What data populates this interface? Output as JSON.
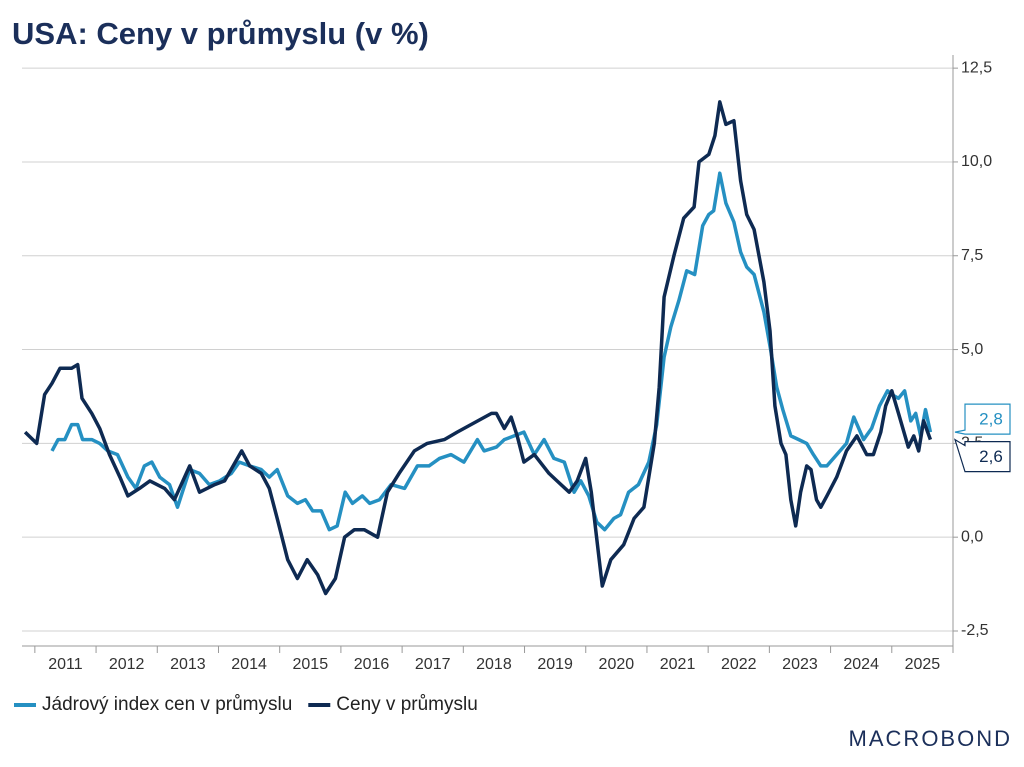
{
  "chart_data": {
    "type": "line",
    "title": "USA: Ceny v průmyslu (v %)",
    "logo": "MACROBOND",
    "xlim": [
      2010.79,
      2026.0
    ],
    "xticks": [
      {
        "value": 2011.5,
        "label": "2011"
      },
      {
        "value": 2012.5,
        "label": "2012"
      },
      {
        "value": 2013.5,
        "label": "2013"
      },
      {
        "value": 2014.5,
        "label": "2014"
      },
      {
        "value": 2015.5,
        "label": "2015"
      },
      {
        "value": 2016.5,
        "label": "2016"
      },
      {
        "value": 2017.5,
        "label": "2017"
      },
      {
        "value": 2018.5,
        "label": "2018"
      },
      {
        "value": 2019.5,
        "label": "2019"
      },
      {
        "value": 2020.5,
        "label": "2020"
      },
      {
        "value": 2021.5,
        "label": "2021"
      },
      {
        "value": 2022.5,
        "label": "2022"
      },
      {
        "value": 2023.5,
        "label": "2023"
      },
      {
        "value": 2024.5,
        "label": "2024"
      },
      {
        "value": 2025.5,
        "label": "2025"
      }
    ],
    "ylim": [
      -2.9,
      12.85
    ],
    "yticks": [
      {
        "value": -2.5,
        "label": "-2,5"
      },
      {
        "value": 0,
        "label": "0,0"
      },
      {
        "value": 2.5,
        "label": "2,5"
      },
      {
        "value": 5,
        "label": "5,0"
      },
      {
        "value": 7.5,
        "label": "7,5"
      },
      {
        "value": 10,
        "label": "10,0"
      },
      {
        "value": 12.5,
        "label": "12,5"
      }
    ],
    "grid": true,
    "series": [
      {
        "name": "Jádrový index cen v průmyslu",
        "color": "#2590c2",
        "end_label": "2,8",
        "x": [
          2011.28,
          2011.38,
          2011.49,
          2011.6,
          2011.7,
          2011.78,
          2011.93,
          2012.06,
          2012.19,
          2012.35,
          2012.52,
          2012.65,
          2012.79,
          2012.91,
          2013.04,
          2013.2,
          2013.33,
          2013.53,
          2013.69,
          2013.85,
          2014.02,
          2014.21,
          2014.34,
          2014.51,
          2014.7,
          2014.83,
          2014.96,
          2015.13,
          2015.29,
          2015.42,
          2015.54,
          2015.68,
          2015.81,
          2015.94,
          2016.07,
          2016.19,
          2016.35,
          2016.47,
          2016.63,
          2016.82,
          2017.04,
          2017.25,
          2017.44,
          2017.61,
          2017.8,
          2018.01,
          2018.23,
          2018.34,
          2018.54,
          2018.67,
          2018.83,
          2018.99,
          2019.16,
          2019.32,
          2019.48,
          2019.65,
          2019.81,
          2019.92,
          2020.05,
          2020.18,
          2020.31,
          2020.46,
          2020.57,
          2020.7,
          2020.86,
          2021.03,
          2021.16,
          2021.28,
          2021.39,
          2021.52,
          2021.65,
          2021.78,
          2021.91,
          2022.01,
          2022.09,
          2022.19,
          2022.29,
          2022.42,
          2022.53,
          2022.63,
          2022.75,
          2022.91,
          2023.02,
          2023.12,
          2023.22,
          2023.35,
          2023.48,
          2023.61,
          2023.72,
          2023.84,
          2023.94,
          2024.1,
          2024.26,
          2024.38,
          2024.54,
          2024.67,
          2024.8,
          2024.93,
          2025.0,
          2025.11,
          2025.21,
          2025.31,
          2025.39,
          2025.47,
          2025.55,
          2025.63
        ],
        "values": [
          2.3,
          2.6,
          2.6,
          3.0,
          3.0,
          2.6,
          2.6,
          2.5,
          2.3,
          2.2,
          1.6,
          1.3,
          1.9,
          2.0,
          1.6,
          1.4,
          0.8,
          1.8,
          1.7,
          1.4,
          1.5,
          1.7,
          2.0,
          1.9,
          1.8,
          1.6,
          1.8,
          1.1,
          0.9,
          1.0,
          0.7,
          0.7,
          0.2,
          0.3,
          1.2,
          0.9,
          1.1,
          0.9,
          1.0,
          1.4,
          1.3,
          1.9,
          1.9,
          2.1,
          2.2,
          2.0,
          2.6,
          2.3,
          2.4,
          2.6,
          2.7,
          2.8,
          2.2,
          2.6,
          2.1,
          2.0,
          1.2,
          1.5,
          1.1,
          0.4,
          0.2,
          0.5,
          0.6,
          1.2,
          1.4,
          2.0,
          3.0,
          4.8,
          5.6,
          6.3,
          7.1,
          7.0,
          8.3,
          8.6,
          8.7,
          9.7,
          8.9,
          8.4,
          7.6,
          7.2,
          7.0,
          6.0,
          5.0,
          4.0,
          3.4,
          2.7,
          2.6,
          2.5,
          2.2,
          1.9,
          1.9,
          2.2,
          2.5,
          3.2,
          2.6,
          2.9,
          3.5,
          3.9,
          3.8,
          3.7,
          3.9,
          3.1,
          3.3,
          2.7,
          3.4,
          2.8
        ]
      },
      {
        "name": "Ceny v průmyslu",
        "color": "#0e2a52",
        "end_label": "2,6",
        "x": [
          2010.84,
          2011.03,
          2011.16,
          2011.28,
          2011.41,
          2011.6,
          2011.7,
          2011.77,
          2011.93,
          2012.06,
          2012.22,
          2012.39,
          2012.52,
          2012.71,
          2012.88,
          2013.12,
          2013.28,
          2013.53,
          2013.69,
          2013.94,
          2014.1,
          2014.38,
          2014.51,
          2014.7,
          2014.83,
          2014.96,
          2015.13,
          2015.29,
          2015.45,
          2015.62,
          2015.75,
          2015.91,
          2016.06,
          2016.22,
          2016.38,
          2016.6,
          2016.76,
          2016.95,
          2017.2,
          2017.41,
          2017.69,
          2017.9,
          2018.46,
          2018.54,
          2018.67,
          2018.78,
          2018.88,
          2018.99,
          2019.16,
          2019.4,
          2019.53,
          2019.73,
          2019.86,
          2020.0,
          2020.09,
          2020.27,
          2020.41,
          2020.62,
          2020.79,
          2020.95,
          2021.12,
          2021.2,
          2021.28,
          2021.44,
          2021.6,
          2021.77,
          2021.85,
          2022.01,
          2022.11,
          2022.19,
          2022.29,
          2022.42,
          2022.53,
          2022.63,
          2022.75,
          2022.91,
          2023.01,
          2023.09,
          2023.19,
          2023.27,
          2023.35,
          2023.43,
          2023.51,
          2023.61,
          2023.68,
          2023.77,
          2023.84,
          2023.94,
          2024.1,
          2024.26,
          2024.43,
          2024.59,
          2024.7,
          2024.82,
          2024.9,
          2025.0,
          2025.11,
          2025.27,
          2025.36,
          2025.44,
          2025.52,
          2025.63
        ],
        "values": [
          2.8,
          2.5,
          3.8,
          4.1,
          4.5,
          4.5,
          4.6,
          3.7,
          3.3,
          2.9,
          2.2,
          1.6,
          1.1,
          1.3,
          1.5,
          1.3,
          1.0,
          1.9,
          1.2,
          1.4,
          1.5,
          2.3,
          1.9,
          1.7,
          1.3,
          0.5,
          -0.6,
          -1.1,
          -0.6,
          -1.0,
          -1.5,
          -1.1,
          0.0,
          0.2,
          0.2,
          0.0,
          1.2,
          1.7,
          2.3,
          2.5,
          2.6,
          2.8,
          3.3,
          3.3,
          2.9,
          3.2,
          2.7,
          2.0,
          2.2,
          1.7,
          1.5,
          1.2,
          1.5,
          2.1,
          1.2,
          -1.3,
          -0.6,
          -0.2,
          0.5,
          0.8,
          2.5,
          4.0,
          6.4,
          7.5,
          8.5,
          8.8,
          10.0,
          10.2,
          10.7,
          11.6,
          11.0,
          11.1,
          9.5,
          8.6,
          8.2,
          6.8,
          5.5,
          3.5,
          2.5,
          2.2,
          1.0,
          0.3,
          1.2,
          1.9,
          1.8,
          1.0,
          0.8,
          1.1,
          1.6,
          2.3,
          2.7,
          2.2,
          2.2,
          2.8,
          3.5,
          3.9,
          3.3,
          2.4,
          2.7,
          2.3,
          3.1,
          2.6
        ]
      }
    ]
  }
}
